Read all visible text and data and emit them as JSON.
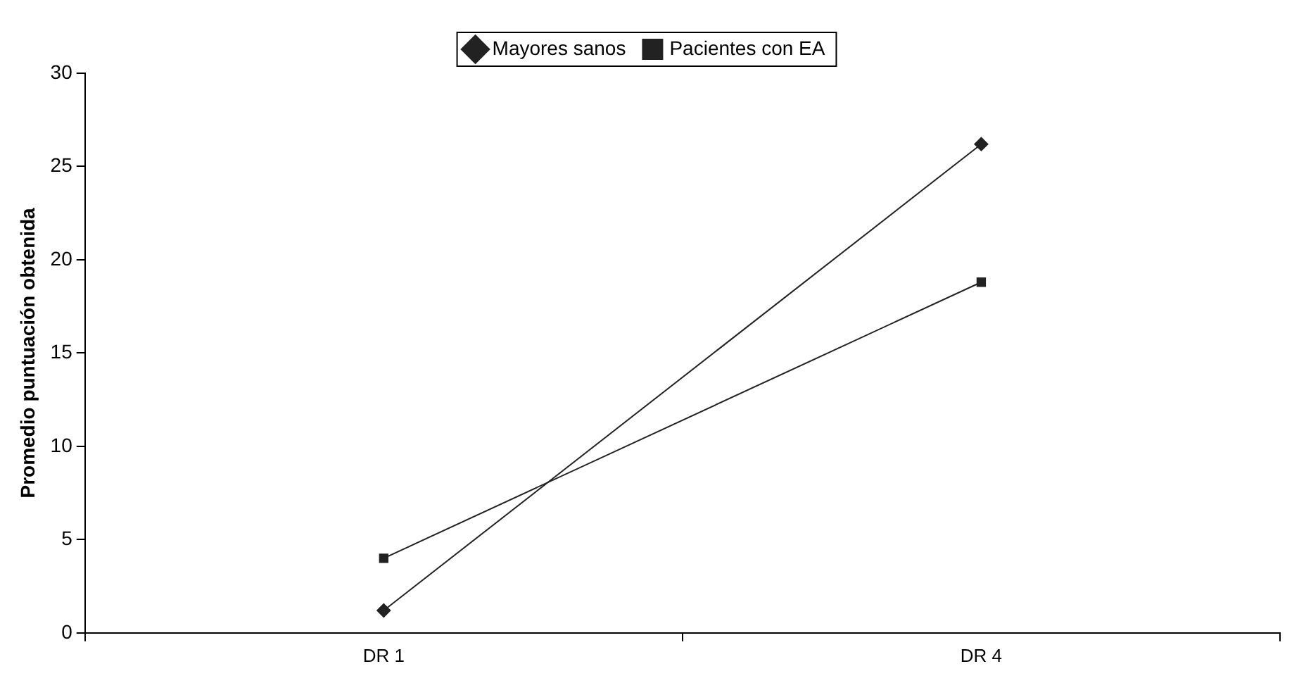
{
  "chart_data": {
    "type": "line",
    "ylabel": "Promedio puntuación obtenida",
    "categories": [
      "DR 1",
      "DR 4"
    ],
    "series": [
      {
        "name": "Mayores sanos",
        "color": "#222222",
        "values": [
          1.2,
          26.2
        ],
        "marker": "diamond"
      },
      {
        "name": "Pacientes con EA",
        "color": "#222222",
        "values": [
          4.0,
          18.8
        ],
        "marker": "square"
      }
    ],
    "ylim": [
      0,
      30
    ],
    "yticks": [
      0,
      5,
      10,
      15,
      20,
      25,
      30
    ],
    "grid": false,
    "legend": "top",
    "line_style": "solid"
  }
}
